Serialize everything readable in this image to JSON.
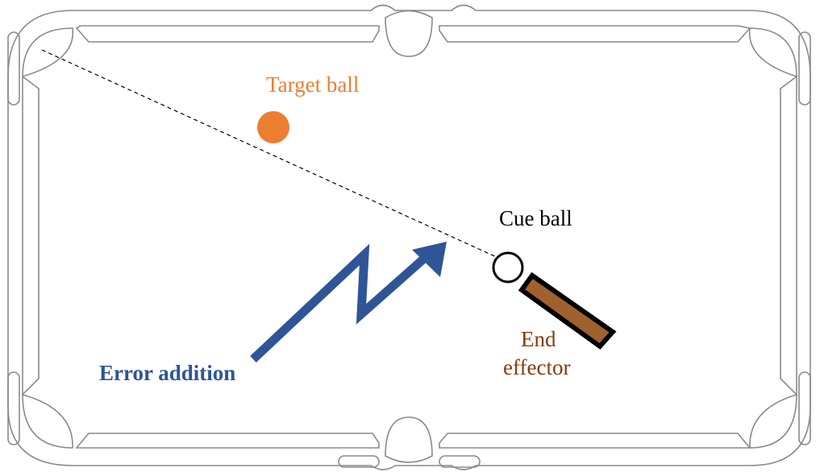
{
  "labels": {
    "target_ball": "Target ball",
    "cue_ball": "Cue ball",
    "end_effector_line1": "End",
    "end_effector_line2": "effector",
    "error_addition": "Error addition"
  },
  "colors": {
    "table_outline": "#8a8a8a",
    "target_ball": "#ED7D31",
    "end_effector_label": "#843C0C",
    "stick_fill": "#A0622D",
    "stick_border": "#000000",
    "error_arrow": "#2F5597",
    "cue_ball_outline": "#000000",
    "aim_line": "#000000"
  }
}
